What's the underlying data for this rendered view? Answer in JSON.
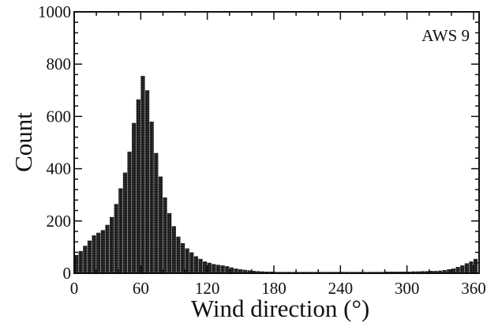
{
  "chart_data": {
    "type": "bar",
    "xlabel": "Wind direction (°)",
    "ylabel": "Count",
    "annotation": "AWS 9",
    "xlim": [
      0,
      365
    ],
    "ylim": [
      0,
      1000
    ],
    "x_ticks": [
      0,
      60,
      120,
      180,
      240,
      300,
      360
    ],
    "y_ticks": [
      0,
      200,
      400,
      600,
      800,
      1000
    ],
    "bin_width": 4,
    "bin_start": [
      0,
      4,
      8,
      12,
      16,
      20,
      24,
      28,
      32,
      36,
      40,
      44,
      48,
      52,
      56,
      60,
      64,
      68,
      72,
      76,
      80,
      84,
      88,
      92,
      96,
      100,
      104,
      108,
      112,
      116,
      120,
      124,
      128,
      132,
      136,
      140,
      144,
      148,
      152,
      156,
      160,
      164,
      168,
      172,
      176,
      180,
      184,
      188,
      192,
      196,
      200,
      204,
      208,
      212,
      216,
      220,
      224,
      228,
      232,
      236,
      240,
      244,
      248,
      252,
      256,
      260,
      264,
      268,
      272,
      276,
      280,
      284,
      288,
      292,
      296,
      300,
      304,
      308,
      312,
      316,
      320,
      324,
      328,
      332,
      336,
      340,
      344,
      348,
      352,
      356,
      360
    ],
    "counts": [
      70,
      85,
      105,
      125,
      145,
      155,
      165,
      185,
      215,
      265,
      325,
      385,
      465,
      575,
      665,
      755,
      700,
      580,
      460,
      370,
      290,
      230,
      180,
      140,
      115,
      95,
      80,
      65,
      55,
      45,
      40,
      35,
      32,
      30,
      27,
      22,
      18,
      15,
      13,
      11,
      9,
      8,
      7,
      6,
      6,
      5,
      5,
      5,
      5,
      5,
      5,
      5,
      5,
      5,
      5,
      5,
      5,
      5,
      5,
      5,
      5,
      5,
      5,
      5,
      5,
      5,
      5,
      5,
      5,
      5,
      6,
      6,
      6,
      6,
      6,
      6,
      7,
      7,
      8,
      8,
      9,
      9,
      10,
      12,
      15,
      18,
      24,
      30,
      38,
      45,
      55
    ],
    "grid": false,
    "bar_color": "#1c1c1c",
    "bar_pattern_color": "#5a5a5a"
  }
}
